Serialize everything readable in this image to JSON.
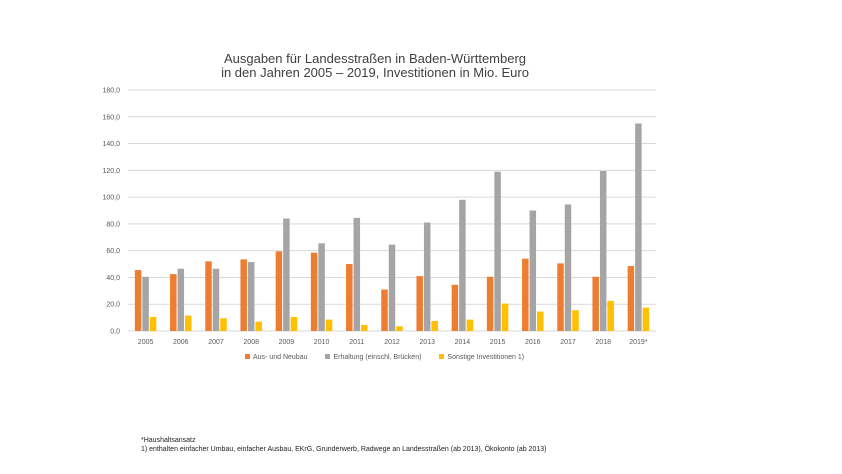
{
  "chart_data": {
    "type": "bar",
    "title_lines": [
      "Ausgaben für Landesstraßen in Baden-Württemberg",
      "in den Jahren 2005 – 2019, Investitionen in Mio. Euro"
    ],
    "categories": [
      "2005",
      "2006",
      "2007",
      "2008",
      "2009",
      "2010",
      "2011",
      "2012",
      "2013",
      "2014",
      "2015",
      "2016",
      "2017",
      "2018",
      "2019*"
    ],
    "series": [
      {
        "name": "Aus- und Neubau",
        "color": "#ED7D31",
        "values": [
          45.5,
          42.5,
          52,
          53.5,
          59.5,
          58.5,
          50,
          31,
          41,
          34.5,
          40.5,
          54,
          50.5,
          40.5,
          48.5
        ]
      },
      {
        "name": "Erhaltung (einschl. Brücken)",
        "color": "#A5A5A5",
        "values": [
          40.5,
          46.5,
          46.5,
          51.5,
          84,
          65.5,
          84.5,
          64.5,
          81,
          98,
          119,
          90,
          94.5,
          119.5,
          155
        ]
      },
      {
        "name": "Sonstige Investitionen 1)",
        "color": "#FFC000",
        "values": [
          10.5,
          11.5,
          9.5,
          7,
          10.5,
          8.5,
          4.5,
          3.5,
          7.5,
          8.5,
          20.5,
          14.5,
          15.5,
          22.5,
          17.5
        ]
      }
    ],
    "ylim": [
      0,
      180
    ],
    "yticks": [
      "0,0",
      "20,0",
      "40,0",
      "60,0",
      "80,0",
      "100,0",
      "120,0",
      "140,0",
      "160,0",
      "180,0"
    ],
    "grid": true,
    "legend_position": "bottom",
    "xlabel": "",
    "ylabel": ""
  },
  "footnotes": [
    "*Haushaltsansatz",
    "1)  enthalten einfacher Umbau, einfacher Ausbau, EKrG, Grunderwerb, Radwege an Landesstraßen (ab 2013), Ökokonto (ab 2013)"
  ]
}
